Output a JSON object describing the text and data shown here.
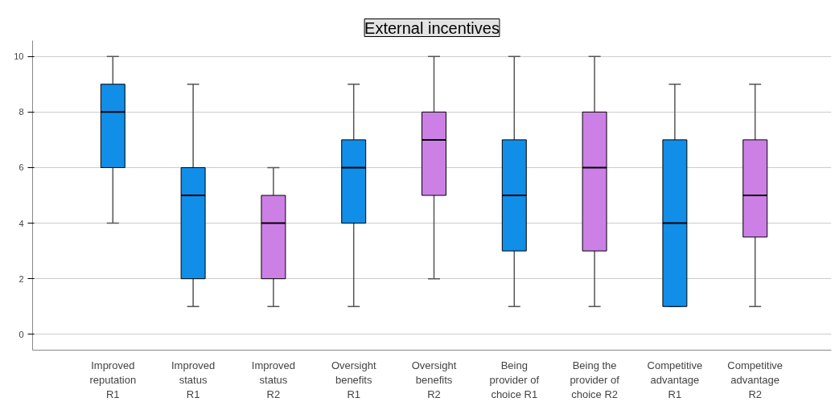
{
  "chart_data": {
    "type": "box",
    "title": "External incentives",
    "categories": [
      "Improved\nreputation\nR1",
      "Improved\nstatus\nR1",
      "Improved\nstatus\nR2",
      "Oversight\nbenefits\nR1",
      "Oversight\nbenefits\nR2",
      "Being\nprovider of\nchoice R1",
      "Being the\nprovider of\nchoice R2",
      "Competitive\nadvantage\nR1",
      "Competitive\nadvantage\nR2"
    ],
    "boxes": [
      {
        "low": 4,
        "q1": 6,
        "median": 8,
        "q3": 9,
        "high": 10
      },
      {
        "low": 1,
        "q1": 2,
        "median": 5,
        "q3": 6,
        "high": 9
      },
      {
        "low": 1,
        "q1": 2,
        "median": 4,
        "q3": 5,
        "high": 6
      },
      {
        "low": 1,
        "q1": 4,
        "median": 6,
        "q3": 7,
        "high": 9
      },
      {
        "low": 2,
        "q1": 5,
        "median": 7,
        "q3": 8,
        "high": 10
      },
      {
        "low": 1,
        "q1": 3,
        "median": 5,
        "q3": 7,
        "high": 10
      },
      {
        "low": 1,
        "q1": 3,
        "median": 6,
        "q3": 8,
        "high": 10
      },
      {
        "low": 1,
        "q1": 1,
        "median": 4,
        "q3": 7,
        "high": 9
      },
      {
        "low": 1,
        "q1": 3.5,
        "median": 5,
        "q3": 7,
        "high": 9
      }
    ],
    "colors": [
      "#118ee8",
      "#118ee8",
      "#cc80e6",
      "#118ee8",
      "#cc80e6",
      "#118ee8",
      "#cc80e6",
      "#118ee8",
      "#cc80e6"
    ],
    "ylim": [
      -0.57,
      10.57
    ],
    "yticks": [
      0,
      2,
      4,
      6,
      8,
      10
    ],
    "grid": "y"
  }
}
